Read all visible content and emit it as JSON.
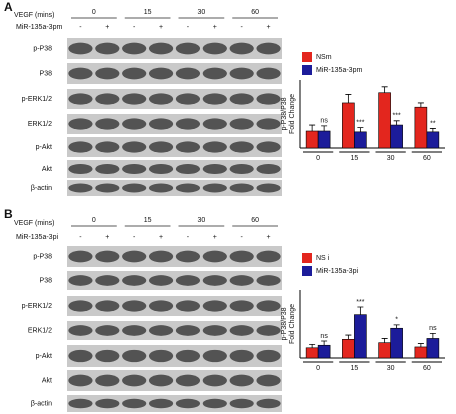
{
  "panels": [
    {
      "label": "A",
      "treatment": "VEGF (mins)",
      "times": [
        "0",
        "15",
        "30",
        "60"
      ],
      "mir": "MiR-135a-3pm",
      "signs": [
        "-",
        "+",
        "-",
        "+",
        "-",
        "+",
        "-",
        "+"
      ],
      "blots": [
        "p-P38",
        "P38",
        "p-ERK1/2",
        "ERK1/2",
        "p-Akt",
        "Akt",
        "β-actin"
      ]
    },
    {
      "label": "B",
      "treatment": "VEGF (mins)",
      "times": [
        "0",
        "15",
        "30",
        "60"
      ],
      "mir": "MiR-135a-3pi",
      "signs": [
        "-",
        "+",
        "-",
        "+",
        "-",
        "+",
        "-",
        "+"
      ],
      "blots": [
        "p-P38",
        "P38",
        "p-ERK1/2",
        "ERK1/2",
        "p-Akt",
        "Akt",
        "β-actin"
      ]
    }
  ],
  "chart_data": [
    {
      "type": "bar",
      "y_label": [
        "p-P38/P38",
        "Fold Change"
      ],
      "categories": [
        "0",
        "15",
        "30",
        "60"
      ],
      "ylim": [
        0,
        4
      ],
      "series": [
        {
          "name": "NSm",
          "color": "#e3261e",
          "values": [
            1.0,
            2.65,
            3.25,
            2.4
          ],
          "errors": [
            0.35,
            0.5,
            0.35,
            0.25
          ]
        },
        {
          "name": "MiR-135a-3pm",
          "color": "#1c1c9a",
          "values": [
            1.0,
            0.95,
            1.35,
            0.95
          ],
          "errors": [
            0.3,
            0.25,
            0.25,
            0.2
          ]
        }
      ],
      "annotations": [
        "ns",
        "***",
        "***",
        "**"
      ]
    },
    {
      "type": "bar",
      "y_label": [
        "p-P38/P38",
        "Fold Change"
      ],
      "categories": [
        "0",
        "15",
        "30",
        "60"
      ],
      "ylim": [
        0,
        8
      ],
      "series": [
        {
          "name": "NS i",
          "color": "#e3261e",
          "values": [
            1.2,
            2.2,
            1.8,
            1.3
          ],
          "errors": [
            0.4,
            0.5,
            0.5,
            0.4
          ]
        },
        {
          "name": "MiR-135a-3pi",
          "color": "#1c1c9a",
          "values": [
            1.5,
            5.1,
            3.5,
            2.3
          ],
          "errors": [
            0.5,
            0.9,
            0.4,
            0.6
          ]
        }
      ],
      "annotations": [
        "ns",
        "***",
        "*",
        "ns"
      ]
    }
  ]
}
